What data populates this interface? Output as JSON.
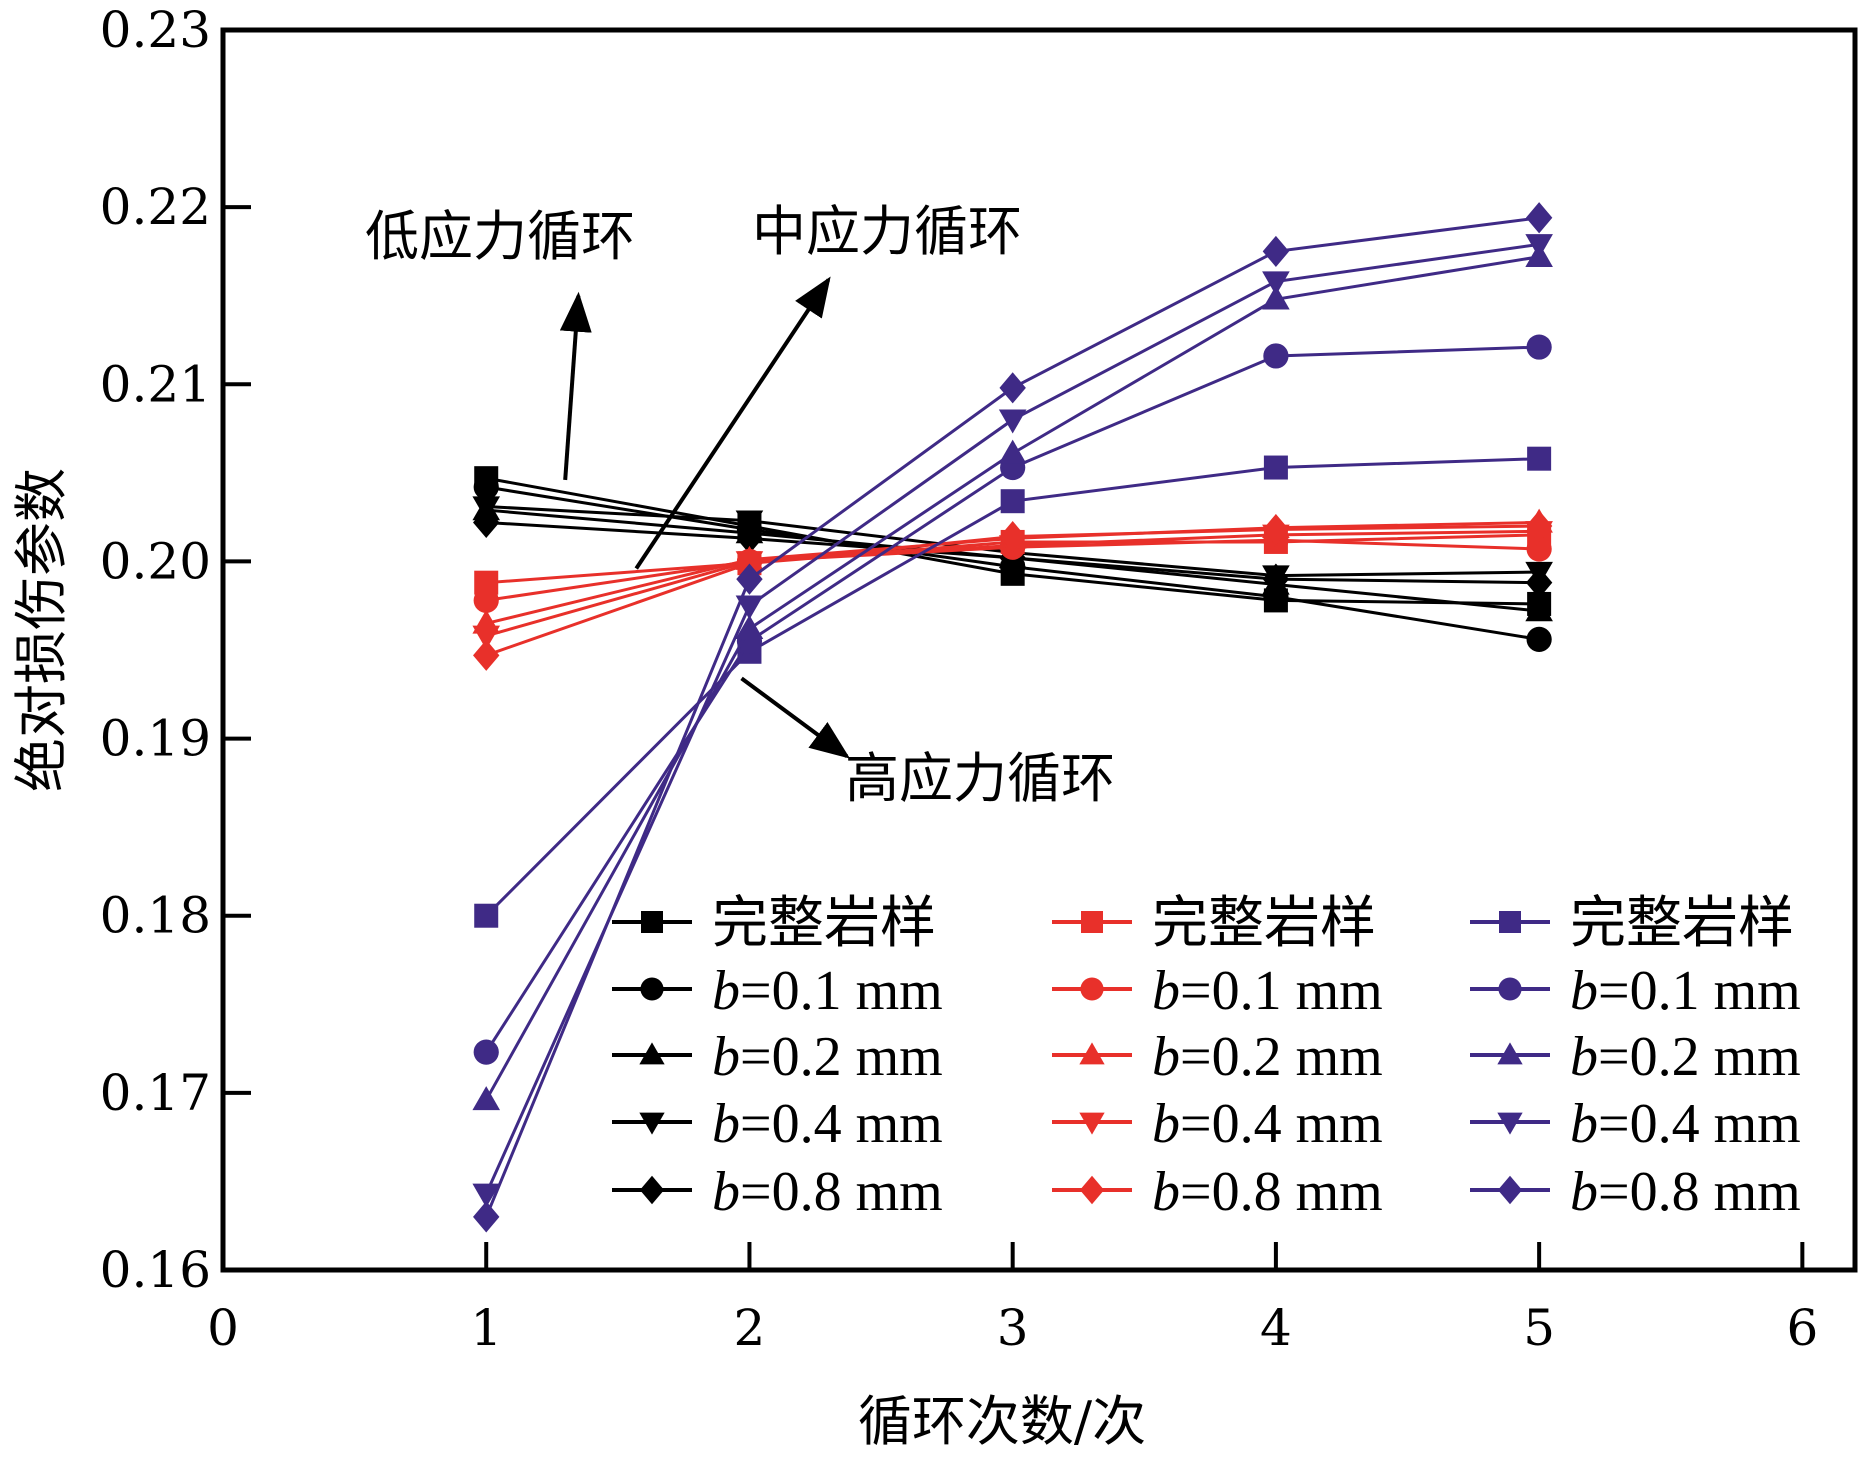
{
  "chart_data": {
    "type": "line",
    "title": "",
    "xlabel": "循环次数/次",
    "ylabel": "绝对损伤参数",
    "xlim": [
      0,
      6.2
    ],
    "ylim": [
      0.16,
      0.23
    ],
    "xticks": [
      "0",
      "1",
      "2",
      "3",
      "4",
      "5",
      "6"
    ],
    "xtick_values": [
      0,
      1,
      2,
      3,
      4,
      5,
      6
    ],
    "yticks": [
      "0.16",
      "0.17",
      "0.18",
      "0.19",
      "0.20",
      "0.21",
      "0.22",
      "0.23"
    ],
    "ytick_values": [
      0.16,
      0.17,
      0.18,
      0.19,
      0.2,
      0.21,
      0.22,
      0.23
    ],
    "grid": false,
    "legend_position": "bottom-right",
    "x": [
      1,
      2,
      3,
      4,
      5
    ],
    "colors": {
      "low": "#000000",
      "mid": "#e8302a",
      "high": "#3f2a86"
    },
    "groups": [
      {
        "name": "低应力循环",
        "color": "#000000",
        "series": [
          {
            "name": "完整岩样",
            "marker": "square",
            "values": [
              0.2047,
              0.202,
              0.1993,
              0.1978,
              0.1976
            ]
          },
          {
            "name": "b=0.1 mm",
            "marker": "circle",
            "values": [
              0.2042,
              0.2018,
              0.1997,
              0.198,
              0.1956
            ]
          },
          {
            "name": "b=0.2 mm",
            "marker": "triangle-up",
            "values": [
              0.2029,
              0.2016,
              0.2002,
              0.1987,
              0.1972
            ]
          },
          {
            "name": "b=0.4 mm",
            "marker": "triangle-down",
            "values": [
              0.2031,
              0.2023,
              0.2005,
              0.1992,
              0.1994
            ]
          },
          {
            "name": "b=0.8 mm",
            "marker": "diamond",
            "values": [
              0.2022,
              0.2013,
              0.2002,
              0.199,
              0.1988
            ]
          }
        ]
      },
      {
        "name": "中应力循环",
        "color": "#e8302a",
        "series": [
          {
            "name": "完整岩样",
            "marker": "square",
            "values": [
              0.1988,
              0.1999,
              0.2011,
              0.2011,
              0.2015
            ]
          },
          {
            "name": "b=0.1 mm",
            "marker": "circle",
            "values": [
              0.1978,
              0.2,
              0.2008,
              0.2012,
              0.2007
            ]
          },
          {
            "name": "b=0.2 mm",
            "marker": "triangle-up",
            "values": [
              0.1965,
              0.2001,
              0.2013,
              0.2019,
              0.2022
            ]
          },
          {
            "name": "b=0.4 mm",
            "marker": "triangle-down",
            "values": [
              0.1958,
              0.2,
              0.2009,
              0.2015,
              0.2017
            ]
          },
          {
            "name": "b=0.8 mm",
            "marker": "diamond",
            "values": [
              0.1947,
              0.1999,
              0.2014,
              0.2018,
              0.202
            ]
          }
        ]
      },
      {
        "name": "高应力循环",
        "color": "#3f2a86",
        "series": [
          {
            "name": "完整岩样",
            "marker": "square",
            "values": [
              0.18,
              0.1949,
              0.2034,
              0.2053,
              0.2058
            ]
          },
          {
            "name": "b=0.1 mm",
            "marker": "circle",
            "values": [
              0.1723,
              0.1955,
              0.2053,
              0.2116,
              0.2121
            ]
          },
          {
            "name": "b=0.2 mm",
            "marker": "triangle-up",
            "values": [
              0.1696,
              0.1962,
              0.2061,
              0.2148,
              0.2172
            ]
          },
          {
            "name": "b=0.4 mm",
            "marker": "triangle-down",
            "values": [
              0.1643,
              0.1975,
              0.208,
              0.2158,
              0.2179
            ]
          },
          {
            "name": "b=0.8 mm",
            "marker": "diamond",
            "values": [
              0.163,
              0.199,
              0.2098,
              0.2175,
              0.2194
            ]
          }
        ]
      }
    ],
    "annotations": [
      {
        "text": "低应力循环",
        "arrow_from": [
          1.3,
          0.2046
        ],
        "arrow_to": [
          1.35,
          0.215
        ]
      },
      {
        "text": "中应力循环",
        "arrow_from": [
          1.57,
          0.1996
        ],
        "arrow_to": [
          2.3,
          0.2159
        ]
      },
      {
        "text": "高应力循环",
        "arrow_from": [
          1.97,
          0.1934
        ],
        "arrow_to": [
          2.37,
          0.189
        ]
      }
    ]
  }
}
